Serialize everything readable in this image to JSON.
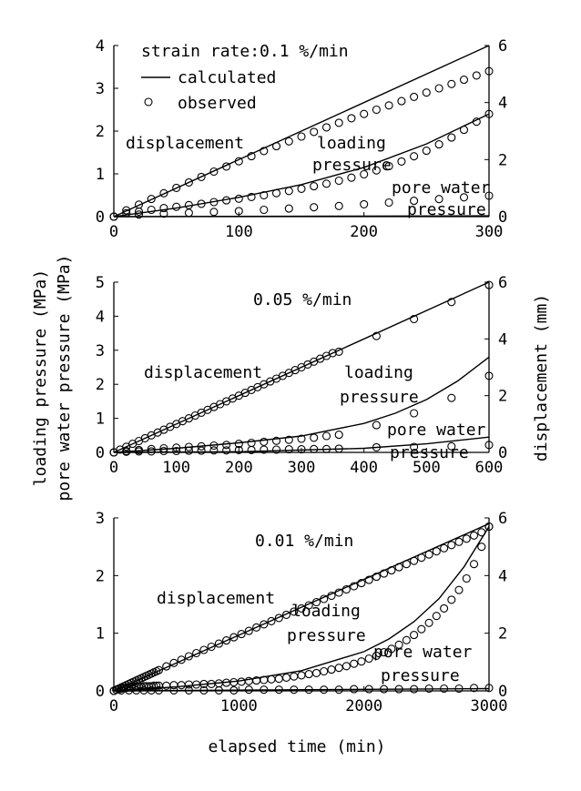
{
  "figure": {
    "y_left_label_line1": "loading pressure (MPa)",
    "y_left_label_line2": "pore water pressure (MPa)",
    "y_right_label": "displacement (mm)",
    "x_label": "elapsed time (min)"
  },
  "chart_data": [
    {
      "type": "line",
      "title": "strain rate:0.1 %/min",
      "xlim": [
        0,
        300
      ],
      "ylim_left": [
        0,
        4
      ],
      "ylim_right": [
        0,
        6
      ],
      "x_ticks": [
        "0",
        "100",
        "200",
        "300"
      ],
      "y_left_ticks": [
        "0",
        "1",
        "2",
        "3",
        "4"
      ],
      "y_right_ticks": [
        "0",
        "2",
        "4",
        "6"
      ],
      "legend": {
        "position": "top-left",
        "calculated": "calculated",
        "observed": "observed"
      },
      "annotations": {
        "displacement": "displacement",
        "loading_1": "loading",
        "loading_2": "pressure",
        "pore_1": "pore water",
        "pore_2": "pressure"
      },
      "series": [
        {
          "name": "displacement",
          "axis": "right",
          "calculated": {
            "x": [
              0,
              300
            ],
            "y": [
              0,
              6.0
            ]
          },
          "observed": {
            "x": [
              0,
              10,
              20,
              30,
              40,
              50,
              60,
              70,
              80,
              90,
              100,
              110,
              120,
              130,
              140,
              150,
              160,
              170,
              180,
              190,
              200,
              210,
              220,
              230,
              240,
              250,
              260,
              270,
              280,
              290,
              300
            ],
            "y": [
              0,
              0.22,
              0.42,
              0.62,
              0.82,
              1.01,
              1.2,
              1.39,
              1.58,
              1.76,
              1.94,
              2.12,
              2.3,
              2.47,
              2.64,
              2.81,
              2.97,
              3.13,
              3.29,
              3.45,
              3.6,
              3.75,
              3.9,
              4.05,
              4.2,
              4.35,
              4.5,
              4.65,
              4.8,
              4.95,
              5.1
            ]
          }
        },
        {
          "name": "loading pressure",
          "axis": "left",
          "calculated": {
            "x": [
              0,
              50,
              100,
              150,
              200,
              250,
              300
            ],
            "y": [
              0,
              0.2,
              0.45,
              0.75,
              1.15,
              1.7,
              2.4
            ]
          },
          "observed": {
            "x": [
              0,
              10,
              20,
              30,
              40,
              50,
              60,
              70,
              80,
              90,
              100,
              110,
              120,
              130,
              140,
              150,
              160,
              170,
              180,
              190,
              200,
              210,
              220,
              230,
              240,
              250,
              260,
              270,
              280,
              290,
              300
            ],
            "y": [
              0,
              0.08,
              0.12,
              0.16,
              0.2,
              0.23,
              0.27,
              0.3,
              0.34,
              0.38,
              0.42,
              0.46,
              0.5,
              0.55,
              0.6,
              0.65,
              0.71,
              0.77,
              0.84,
              0.91,
              0.99,
              1.08,
              1.18,
              1.29,
              1.41,
              1.54,
              1.69,
              1.85,
              2.03,
              2.22,
              2.4
            ]
          }
        },
        {
          "name": "pore water pressure",
          "axis": "left",
          "calculated": {
            "x": [
              0,
              300
            ],
            "y": [
              0,
              0.02
            ]
          },
          "observed": {
            "x": [
              0,
              20,
              40,
              60,
              80,
              100,
              120,
              140,
              160,
              180,
              200,
              220,
              240,
              260,
              280,
              300
            ],
            "y": [
              0,
              0.05,
              0.07,
              0.09,
              0.11,
              0.13,
              0.16,
              0.19,
              0.22,
              0.25,
              0.29,
              0.33,
              0.37,
              0.41,
              0.45,
              0.49
            ]
          }
        }
      ]
    },
    {
      "type": "line",
      "title": "0.05 %/min",
      "xlim": [
        0,
        600
      ],
      "ylim_left": [
        0,
        5
      ],
      "ylim_right": [
        0,
        6
      ],
      "x_ticks": [
        "0",
        "100",
        "200",
        "300",
        "400",
        "500",
        "600"
      ],
      "y_left_ticks": [
        "0",
        "1",
        "2",
        "3",
        "4",
        "5"
      ],
      "y_right_ticks": [
        "0",
        "2",
        "4",
        "6"
      ],
      "annotations": {
        "displacement": "displacement",
        "loading_1": "loading",
        "loading_2": "pressure",
        "pore_1": "pore water",
        "pore_2": "pressure"
      },
      "series": [
        {
          "name": "displacement",
          "axis": "right",
          "calculated": {
            "x": [
              0,
              600
            ],
            "y": [
              0,
              6.0
            ]
          },
          "observed": {
            "x": [
              0,
              10,
              20,
              30,
              40,
              50,
              60,
              70,
              80,
              90,
              100,
              110,
              120,
              130,
              140,
              150,
              160,
              170,
              180,
              190,
              200,
              210,
              220,
              230,
              240,
              250,
              260,
              270,
              280,
              290,
              300,
              310,
              320,
              330,
              340,
              350,
              360,
              420,
              480,
              540,
              600
            ],
            "y": [
              0,
              0.1,
              0.2,
              0.3,
              0.4,
              0.5,
              0.6,
              0.7,
              0.8,
              0.9,
              1.0,
              1.1,
              1.2,
              1.3,
              1.4,
              1.5,
              1.6,
              1.7,
              1.8,
              1.9,
              2.0,
              2.1,
              2.2,
              2.3,
              2.4,
              2.5,
              2.6,
              2.7,
              2.8,
              2.9,
              3.0,
              3.1,
              3.2,
              3.3,
              3.4,
              3.5,
              3.55,
              4.1,
              4.7,
              5.3,
              5.9
            ]
          }
        },
        {
          "name": "loading pressure",
          "axis": "left",
          "calculated": {
            "x": [
              0,
              100,
              200,
              300,
              400,
              450,
              500,
              550,
              600
            ],
            "y": [
              0,
              0.12,
              0.28,
              0.48,
              0.85,
              1.15,
              1.55,
              2.1,
              2.8
            ]
          },
          "observed": {
            "x": [
              0,
              20,
              40,
              60,
              80,
              100,
              120,
              140,
              160,
              180,
              200,
              220,
              240,
              260,
              280,
              300,
              320,
              340,
              360,
              420,
              480,
              540,
              600
            ],
            "y": [
              0,
              0.04,
              0.07,
              0.1,
              0.12,
              0.14,
              0.16,
              0.18,
              0.2,
              0.22,
              0.25,
              0.28,
              0.31,
              0.34,
              0.37,
              0.4,
              0.43,
              0.48,
              0.52,
              0.8,
              1.15,
              1.6,
              2.25
            ]
          }
        },
        {
          "name": "pore water pressure",
          "axis": "left",
          "calculated": {
            "x": [
              0,
              200,
              400,
              500,
              600
            ],
            "y": [
              0,
              0.02,
              0.12,
              0.25,
              0.45
            ]
          },
          "observed": {
            "x": [
              0,
              20,
              40,
              60,
              80,
              100,
              120,
              140,
              160,
              180,
              200,
              220,
              240,
              260,
              280,
              300,
              320,
              340,
              360,
              420,
              480,
              540,
              600
            ],
            "y": [
              0,
              0.02,
              0.03,
              0.03,
              0.04,
              0.04,
              0.05,
              0.05,
              0.06,
              0.06,
              0.07,
              0.07,
              0.08,
              0.08,
              0.09,
              0.09,
              0.1,
              0.1,
              0.11,
              0.15,
              0.16,
              0.18,
              0.22
            ]
          }
        }
      ]
    },
    {
      "type": "line",
      "title": "0.01 %/min",
      "xlim": [
        0,
        3000
      ],
      "ylim_left": [
        0,
        3
      ],
      "ylim_right": [
        0,
        6
      ],
      "x_ticks": [
        "0",
        "1000",
        "2000",
        "3000"
      ],
      "y_left_ticks": [
        "0",
        "1",
        "2",
        "3"
      ],
      "y_right_ticks": [
        "0",
        "2",
        "4",
        "6"
      ],
      "annotations": {
        "displacement": "displacement",
        "loading_1": "loading",
        "loading_2": "pressure",
        "pore_1": "pore water",
        "pore_2": "pressure"
      },
      "series": [
        {
          "name": "displacement",
          "axis": "right",
          "calculated": {
            "x": [
              0,
              3000
            ],
            "y": [
              0,
              5.8
            ]
          },
          "observed": {
            "x": [
              0,
              20,
              40,
              60,
              80,
              100,
              120,
              140,
              160,
              180,
              200,
              220,
              240,
              260,
              280,
              300,
              320,
              340,
              360,
              420,
              480,
              540,
              600,
              660,
              720,
              780,
              840,
              900,
              960,
              1020,
              1080,
              1140,
              1200,
              1260,
              1320,
              1380,
              1440,
              1500,
              1560,
              1620,
              1680,
              1740,
              1800,
              1860,
              1920,
              1980,
              2040,
              2100,
              2160,
              2220,
              2280,
              2340,
              2400,
              2460,
              2520,
              2580,
              2640,
              2700,
              2760,
              2820,
              2880,
              2940,
              3000
            ],
            "y": [
              0,
              0.04,
              0.08,
              0.12,
              0.16,
              0.2,
              0.24,
              0.28,
              0.32,
              0.36,
              0.4,
              0.44,
              0.48,
              0.52,
              0.56,
              0.6,
              0.64,
              0.68,
              0.72,
              0.85,
              0.97,
              1.08,
              1.2,
              1.31,
              1.42,
              1.53,
              1.64,
              1.75,
              1.86,
              1.97,
              2.08,
              2.2,
              2.31,
              2.42,
              2.53,
              2.64,
              2.75,
              2.86,
              2.97,
              3.08,
              3.19,
              3.3,
              3.41,
              3.52,
              3.63,
              3.74,
              3.85,
              3.96,
              4.07,
              4.18,
              4.29,
              4.4,
              4.51,
              4.62,
              4.73,
              4.84,
              4.95,
              5.06,
              5.17,
              5.28,
              5.39,
              5.5,
              5.7
            ]
          }
        },
        {
          "name": "loading pressure",
          "axis": "left",
          "calculated": {
            "x": [
              0,
              500,
              1000,
              1500,
              2000,
              2200,
              2400,
              2600,
              2800,
              3000
            ],
            "y": [
              0,
              0.07,
              0.17,
              0.35,
              0.68,
              0.9,
              1.2,
              1.6,
              2.15,
              2.85
            ]
          },
          "observed": {
            "x": [
              0,
              20,
              40,
              60,
              80,
              100,
              120,
              140,
              160,
              180,
              200,
              220,
              240,
              260,
              280,
              300,
              320,
              340,
              360,
              420,
              480,
              540,
              600,
              660,
              720,
              780,
              840,
              900,
              960,
              1020,
              1080,
              1140,
              1200,
              1260,
              1320,
              1380,
              1440,
              1500,
              1560,
              1620,
              1680,
              1740,
              1800,
              1860,
              1920,
              1980,
              2040,
              2100,
              2160,
              2220,
              2280,
              2340,
              2400,
              2460,
              2520,
              2580,
              2640,
              2700,
              2760,
              2820,
              2880,
              2940,
              3000
            ],
            "y": [
              0,
              0.02,
              0.03,
              0.04,
              0.05,
              0.05,
              0.06,
              0.06,
              0.06,
              0.07,
              0.07,
              0.07,
              0.08,
              0.08,
              0.08,
              0.08,
              0.09,
              0.09,
              0.09,
              0.09,
              0.1,
              0.1,
              0.11,
              0.11,
              0.12,
              0.12,
              0.13,
              0.14,
              0.15,
              0.16,
              0.17,
              0.18,
              0.19,
              0.2,
              0.21,
              0.23,
              0.25,
              0.27,
              0.29,
              0.31,
              0.34,
              0.37,
              0.4,
              0.43,
              0.47,
              0.51,
              0.56,
              0.61,
              0.67,
              0.73,
              0.8,
              0.88,
              0.97,
              1.07,
              1.18,
              1.3,
              1.43,
              1.58,
              1.75,
              1.95,
              2.2,
              2.5,
              2.85
            ]
          }
        },
        {
          "name": "pore water pressure",
          "axis": "left",
          "calculated": {
            "x": [
              0,
              3000
            ],
            "y": [
              0,
              0.04
            ]
          },
          "observed": {
            "x": [
              0,
              60,
              120,
              180,
              240,
              300,
              360,
              480,
              600,
              720,
              840,
              960,
              1080,
              1200,
              1320,
              1440,
              1560,
              1680,
              1800,
              1920,
              2040,
              2160,
              2280,
              2400,
              2520,
              2640,
              2760,
              2880,
              3000
            ],
            "y": [
              0,
              0.01,
              0.01,
              0.01,
              0.01,
              0.01,
              0.01,
              0.01,
              0.01,
              0.01,
              0.01,
              0.01,
              0.02,
              0.02,
              0.02,
              0.02,
              0.02,
              0.02,
              0.02,
              0.03,
              0.03,
              0.03,
              0.03,
              0.03,
              0.04,
              0.04,
              0.04,
              0.05,
              0.05
            ]
          }
        }
      ]
    }
  ]
}
